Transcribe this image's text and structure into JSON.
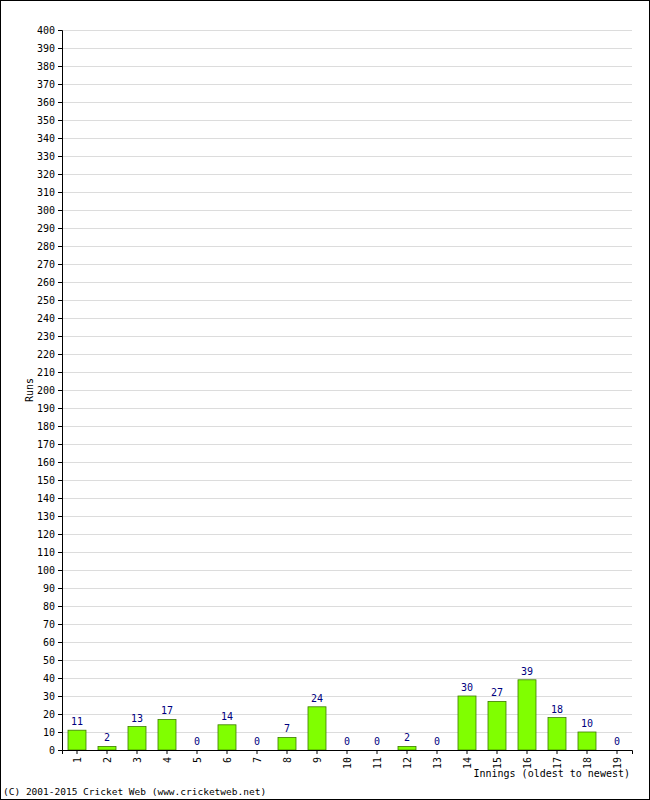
{
  "chart_data": {
    "type": "bar",
    "categories": [
      "1",
      "2",
      "3",
      "4",
      "5",
      "6",
      "7",
      "8",
      "9",
      "10",
      "11",
      "12",
      "13",
      "14",
      "15",
      "16",
      "17",
      "18",
      "19"
    ],
    "values": [
      11,
      2,
      13,
      17,
      0,
      14,
      0,
      7,
      24,
      0,
      0,
      2,
      0,
      30,
      27,
      39,
      18,
      10,
      0
    ],
    "color": "#80ff00",
    "x_label": "Innings (oldest to newest)",
    "y_label": "Runs",
    "annotations": [
      "(C) 2001-2015 Cricket Web (www.cricketweb.net)"
    ],
    "ylim": [
      0,
      400
    ],
    "yticks": [
      0,
      10,
      20,
      30,
      40,
      50,
      60,
      70,
      80,
      90,
      100,
      110,
      120,
      130,
      140,
      150,
      160,
      170,
      180,
      190,
      200,
      210,
      220,
      230,
      240,
      250,
      260,
      270,
      280,
      290,
      300,
      310,
      320,
      330,
      340,
      350,
      360,
      370,
      380,
      390,
      400
    ],
    "grid": true,
    "data_labels": true
  }
}
